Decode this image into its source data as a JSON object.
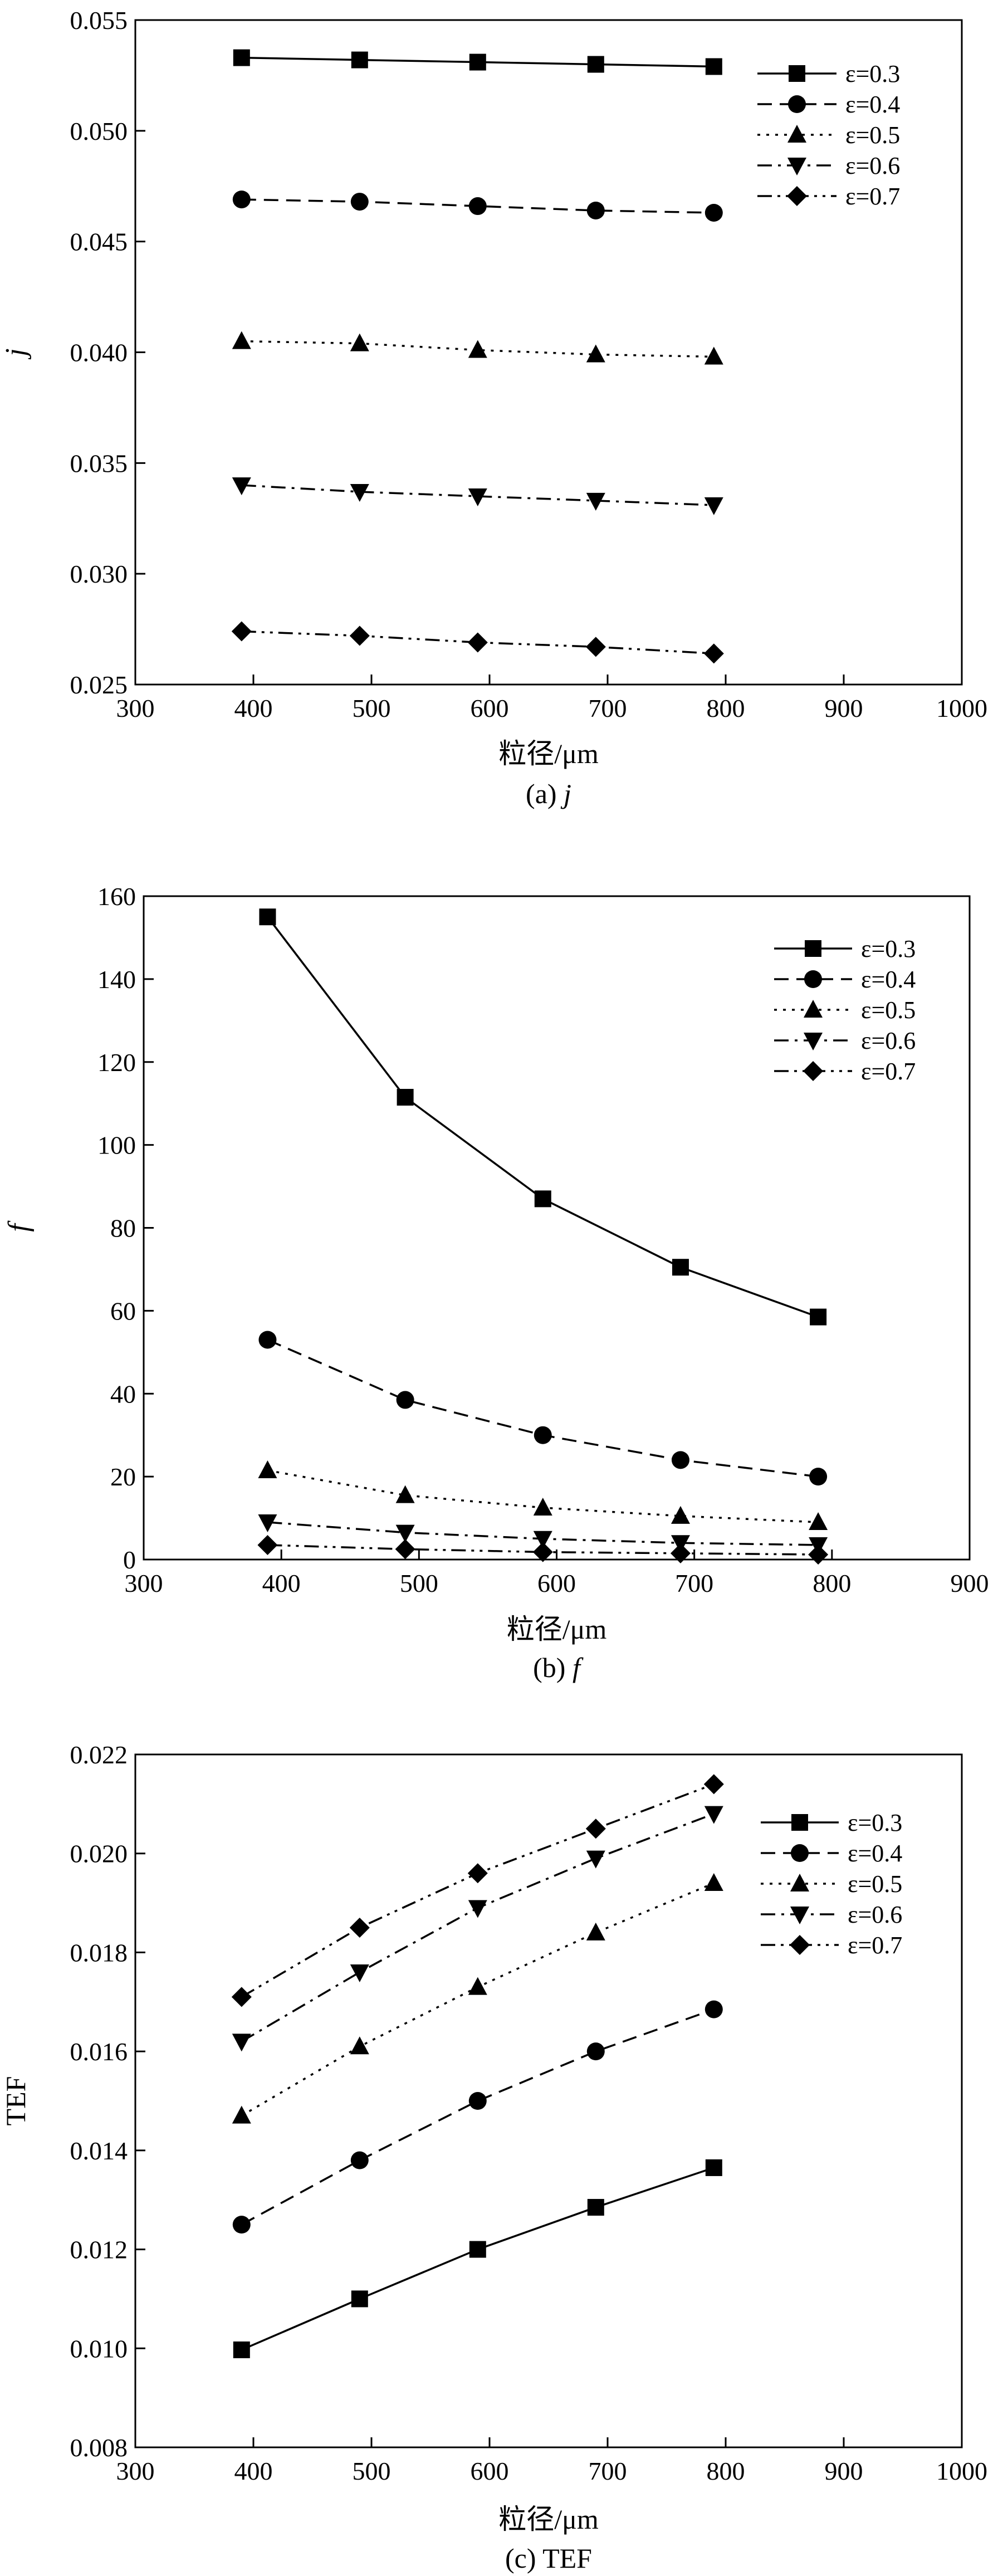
{
  "chart_data": [
    {
      "type": "line",
      "caption_prefix": "(a) ",
      "caption_symbol": "j",
      "xlabel": "粒径/μm",
      "ylabel": "j",
      "xlim": [
        300,
        1000
      ],
      "ylim": [
        0.025,
        0.055
      ],
      "x_ticks": [
        300,
        400,
        500,
        600,
        700,
        800,
        900,
        1000
      ],
      "x_tick_labels": [
        "300",
        "400",
        "500",
        "600",
        "700",
        "800",
        "900",
        "1000"
      ],
      "y_ticks": [
        0.025,
        0.03,
        0.035,
        0.04,
        0.045,
        0.05,
        0.055
      ],
      "y_tick_labels": [
        "0.025",
        "0.030",
        "0.035",
        "0.040",
        "0.045",
        "0.050",
        "0.055"
      ],
      "grid": false,
      "legend_position": "top-right",
      "x": [
        390,
        490,
        590,
        690,
        790
      ],
      "series": [
        {
          "name": "ε=0.3",
          "marker": "square",
          "dash": "solid",
          "values": [
            0.0533,
            0.0532,
            0.0531,
            0.053,
            0.0529
          ]
        },
        {
          "name": "ε=0.4",
          "marker": "circle",
          "dash": "dash",
          "values": [
            0.0469,
            0.0468,
            0.0466,
            0.0464,
            0.0463
          ]
        },
        {
          "name": "ε=0.5",
          "marker": "triangle-up",
          "dash": "dot",
          "values": [
            0.0405,
            0.0404,
            0.0401,
            0.0399,
            0.0398
          ]
        },
        {
          "name": "ε=0.6",
          "marker": "triangle-down",
          "dash": "dashdot",
          "values": [
            0.034,
            0.0337,
            0.0335,
            0.0333,
            0.0331
          ]
        },
        {
          "name": "ε=0.7",
          "marker": "diamond",
          "dash": "dashdotdot",
          "values": [
            0.0274,
            0.0272,
            0.0269,
            0.0267,
            0.0264
          ]
        }
      ]
    },
    {
      "type": "line",
      "caption_prefix": "(b) ",
      "caption_symbol": "f",
      "xlabel": "粒径/μm",
      "ylabel": "f",
      "xlim": [
        300,
        900
      ],
      "ylim": [
        0,
        160
      ],
      "x_ticks": [
        300,
        400,
        500,
        600,
        700,
        800,
        900
      ],
      "x_tick_labels": [
        "300",
        "400",
        "500",
        "600",
        "700",
        "800",
        "900"
      ],
      "y_ticks": [
        0,
        20,
        40,
        60,
        80,
        100,
        120,
        140,
        160
      ],
      "y_tick_labels": [
        "0",
        "20",
        "40",
        "60",
        "80",
        "100",
        "120",
        "140",
        "160"
      ],
      "grid": false,
      "legend_position": "top-right",
      "x": [
        390,
        490,
        590,
        690,
        790
      ],
      "series": [
        {
          "name": "ε=0.3",
          "marker": "square",
          "dash": "solid",
          "values": [
            155,
            111.5,
            87,
            70.5,
            58.5
          ]
        },
        {
          "name": "ε=0.4",
          "marker": "circle",
          "dash": "dash",
          "values": [
            53,
            38.5,
            30,
            24,
            20
          ]
        },
        {
          "name": "ε=0.5",
          "marker": "triangle-up",
          "dash": "dot",
          "values": [
            21.5,
            15.5,
            12.5,
            10.5,
            9
          ]
        },
        {
          "name": "ε=0.6",
          "marker": "triangle-down",
          "dash": "dashdot",
          "values": [
            9,
            6.5,
            5,
            4,
            3.5
          ]
        },
        {
          "name": "ε=0.7",
          "marker": "diamond",
          "dash": "dashdotdot",
          "values": [
            3.5,
            2.5,
            1.8,
            1.5,
            1.2
          ]
        }
      ]
    },
    {
      "type": "line",
      "caption_prefix": "(c) ",
      "caption_symbol": "TEF",
      "xlabel": "粒径/μm",
      "ylabel": "TEF",
      "xlim": [
        300,
        1000
      ],
      "ylim": [
        0.008,
        0.022
      ],
      "x_ticks": [
        300,
        400,
        500,
        600,
        700,
        800,
        900,
        1000
      ],
      "x_tick_labels": [
        "300",
        "400",
        "500",
        "600",
        "700",
        "800",
        "900",
        "1000"
      ],
      "y_ticks": [
        0.008,
        0.01,
        0.012,
        0.014,
        0.016,
        0.018,
        0.02,
        0.022
      ],
      "y_tick_labels": [
        "0.008",
        "0.010",
        "0.012",
        "0.014",
        "0.016",
        "0.018",
        "0.020",
        "0.022"
      ],
      "grid": false,
      "legend_position": "top-right",
      "x": [
        390,
        490,
        590,
        690,
        790
      ],
      "series": [
        {
          "name": "ε=0.3",
          "marker": "square",
          "dash": "solid",
          "values": [
            0.00997,
            0.011,
            0.012,
            0.01285,
            0.01365
          ]
        },
        {
          "name": "ε=0.4",
          "marker": "circle",
          "dash": "dash",
          "values": [
            0.0125,
            0.0138,
            0.015,
            0.016,
            0.01685
          ]
        },
        {
          "name": "ε=0.5",
          "marker": "triangle-up",
          "dash": "dot",
          "values": [
            0.0147,
            0.0161,
            0.0173,
            0.0184,
            0.0194
          ]
        },
        {
          "name": "ε=0.6",
          "marker": "triangle-down",
          "dash": "dashdot",
          "values": [
            0.0162,
            0.0176,
            0.0189,
            0.0199,
            0.0208
          ]
        },
        {
          "name": "ε=0.7",
          "marker": "diamond",
          "dash": "dashdotdot",
          "values": [
            0.0171,
            0.0185,
            0.0196,
            0.0205,
            0.0214
          ]
        }
      ]
    }
  ]
}
